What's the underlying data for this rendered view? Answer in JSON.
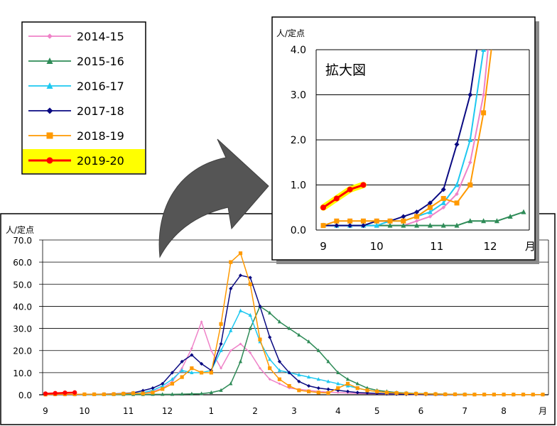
{
  "colors": {
    "s2014": "#ef82c8",
    "s2015": "#2e8b57",
    "s2016": "#1ec8f0",
    "s2017": "#0a0a82",
    "s2018": "#ff9900",
    "s2019": "#ff0000",
    "highlight": "#ffff00",
    "arrow": "#555555"
  },
  "chart_data": [
    {
      "type": "line",
      "role": "main",
      "ylabel": "人/定点",
      "ylim": [
        0,
        70
      ],
      "yticks": [
        "0.0",
        "10.0",
        "20.0",
        "30.0",
        "40.0",
        "50.0",
        "60.0",
        "70.0"
      ],
      "x_ticks": [
        {
          "label": "9",
          "week": 1
        },
        {
          "label": "10",
          "week": 5
        },
        {
          "label": "11",
          "week": 9.5
        },
        {
          "label": "12",
          "week": 13.5
        },
        {
          "label": "1",
          "week": 18
        },
        {
          "label": "2",
          "week": 22.5
        },
        {
          "label": "3",
          "week": 26.5
        },
        {
          "label": "4",
          "week": 31
        },
        {
          "label": "5",
          "week": 35
        },
        {
          "label": "6",
          "week": 39.5
        },
        {
          "label": "7",
          "week": 44
        },
        {
          "label": "8",
          "week": 48
        },
        {
          "label": "月",
          "week": 52
        }
      ],
      "grid": true,
      "series": [
        {
          "name": "2014-15",
          "color_key": "s2014",
          "marker": "diamond-small",
          "values": [
            0.1,
            0.1,
            0.1,
            0.1,
            0.1,
            0.1,
            0.1,
            0.2,
            0.3,
            0.5,
            0.8,
            1.5,
            3,
            6,
            12,
            21,
            33,
            20,
            12,
            20,
            23,
            19,
            12,
            7,
            5,
            3,
            2.5,
            2,
            1.5,
            1.2,
            1,
            0.8,
            0.6,
            0.5,
            0.4,
            0.3,
            0.2,
            0.2,
            0.1,
            0.1,
            0.1,
            0.1,
            0.1,
            0.1,
            0.1,
            0.1,
            0.1,
            0.1,
            0.1,
            0.1,
            0.1,
            0.1
          ]
        },
        {
          "name": "2015-16",
          "color_key": "s2015",
          "marker": "triangle",
          "values": [
            0.1,
            0.1,
            0.1,
            0.1,
            0.1,
            0.1,
            0.1,
            0.1,
            0.1,
            0.1,
            0.1,
            0.2,
            0.2,
            0.2,
            0.3,
            0.4,
            0.5,
            1,
            2,
            5,
            15,
            30,
            40,
            37,
            33,
            30,
            27,
            24,
            20,
            15,
            10,
            7,
            5,
            3,
            2,
            1.5,
            1,
            0.8,
            0.6,
            0.5,
            0.4,
            0.3,
            0.2,
            0.2,
            0.1,
            0.1,
            0.1,
            0.1,
            0.1,
            0.1,
            0.1,
            0.1
          ]
        },
        {
          "name": "2016-17",
          "color_key": "s2016",
          "marker": "triangle",
          "values": [
            0.1,
            0.1,
            0.1,
            0.1,
            0.1,
            0.2,
            0.2,
            0.3,
            0.4,
            0.6,
            1,
            2,
            4,
            7,
            11,
            10,
            10,
            11,
            20,
            29,
            38,
            36,
            24,
            16,
            11,
            10,
            9,
            8,
            7,
            6,
            5,
            4,
            3,
            2,
            1.5,
            1,
            0.8,
            0.6,
            0.5,
            0.4,
            0.3,
            0.2,
            0.2,
            0.1,
            0.1,
            0.1,
            0.1,
            0.1,
            0.1,
            0.1,
            0.1,
            0.1
          ]
        },
        {
          "name": "2017-18",
          "color_key": "s2017",
          "marker": "diamond",
          "values": [
            0.1,
            0.1,
            0.1,
            0.1,
            0.2,
            0.2,
            0.3,
            0.4,
            0.6,
            0.9,
            1.9,
            3,
            5,
            10,
            15,
            18,
            14,
            11,
            23,
            48,
            54,
            53,
            40,
            26,
            15,
            10,
            6,
            4,
            3,
            2.5,
            2,
            1.5,
            1,
            0.8,
            0.6,
            0.4,
            0.3,
            0.2,
            0.2,
            0.1,
            0.1,
            0.1,
            0.1,
            0.1,
            0.1,
            0.1,
            0.1,
            0.1,
            0.1,
            0.1,
            0.1,
            0.1
          ]
        },
        {
          "name": "2018-19",
          "color_key": "s2018",
          "marker": "square",
          "values": [
            0.1,
            0.2,
            0.2,
            0.2,
            0.2,
            0.2,
            0.2,
            0.3,
            0.5,
            0.7,
            0.6,
            1,
            2.6,
            5,
            8,
            12,
            10,
            10,
            32,
            60,
            64,
            50,
            25,
            12,
            7,
            4,
            2,
            1.5,
            1,
            0.8,
            3,
            5,
            3,
            2,
            1.5,
            1,
            0.8,
            0.6,
            0.5,
            0.4,
            0.3,
            0.2,
            0.2,
            0.1,
            0.1,
            0.1,
            0.1,
            0.1,
            0.1,
            0.1,
            0.1,
            0.1
          ]
        },
        {
          "name": "2019-20",
          "color_key": "s2019",
          "marker": "circle",
          "values": [
            0.5,
            0.7,
            0.9,
            1.0
          ]
        }
      ]
    },
    {
      "type": "line",
      "role": "inset",
      "title": "拡大図",
      "ylabel": "人/定点",
      "ylim": [
        0,
        4
      ],
      "yticks": [
        "0.0",
        "1.0",
        "2.0",
        "3.0",
        "4.0"
      ],
      "x_ticks": [
        {
          "label": "9",
          "week": 1
        },
        {
          "label": "10",
          "week": 5
        },
        {
          "label": "11",
          "week": 9.5
        },
        {
          "label": "12",
          "week": 13.5
        },
        {
          "label": "月",
          "week": 16.5
        }
      ],
      "grid": true,
      "shared_series": "main",
      "visible_weeks": 16
    }
  ],
  "legend": {
    "items": [
      {
        "name": "2014-15",
        "color_key": "s2014",
        "marker": "diamond-small"
      },
      {
        "name": "2015-16",
        "color_key": "s2015",
        "marker": "triangle"
      },
      {
        "name": "2016-17",
        "color_key": "s2016",
        "marker": "triangle"
      },
      {
        "name": "2017-18",
        "color_key": "s2017",
        "marker": "diamond"
      },
      {
        "name": "2018-19",
        "color_key": "s2018",
        "marker": "square"
      },
      {
        "name": "2019-20",
        "color_key": "s2019",
        "marker": "circle",
        "highlighted": true
      }
    ]
  }
}
